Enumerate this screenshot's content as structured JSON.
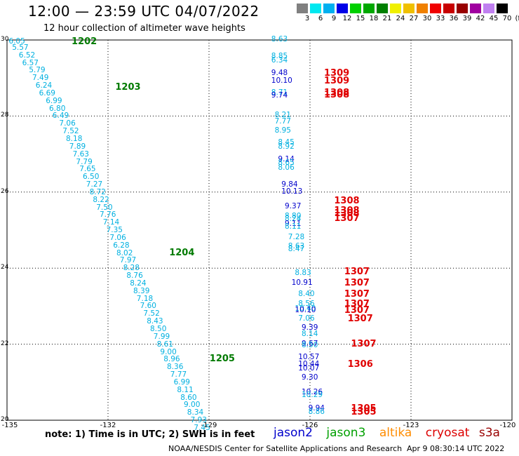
{
  "title": "12:00 — 23:59 UTC 04/07/2022",
  "subtitle": "12 hour collection of altimeter wave heights",
  "colorbar": {
    "labels": [
      "3",
      "6",
      "9",
      "12",
      "15",
      "18",
      "21",
      "24",
      "27",
      "30",
      "33",
      "36",
      "39",
      "42",
      "45",
      "70",
      "(ft)"
    ],
    "colors": [
      "#808080",
      "#00e8f0",
      "#00b0f0",
      "#0000e8",
      "#00d000",
      "#00a800",
      "#008000",
      "#f0f000",
      "#f0c000",
      "#f08000",
      "#f00000",
      "#c80000",
      "#980000",
      "#a000a0",
      "#c080f0",
      "#000000"
    ]
  },
  "axes": {
    "lat_ticks": [
      "30",
      "28",
      "26",
      "24",
      "22",
      "20"
    ],
    "lon_ticks": [
      "-135",
      "-132",
      "-129",
      "-126",
      "-123",
      "-120"
    ],
    "lon_range": [
      -135,
      -120
    ],
    "lat_range": [
      20,
      30
    ]
  },
  "satellites": {
    "jason2": {
      "label": "jason2",
      "color": "#0000cc"
    },
    "jason3": {
      "label": "jason3",
      "color": "#00a000"
    },
    "altika": {
      "label": "altika",
      "color": "#ff8c00"
    },
    "cryosat": {
      "label": "cryosat",
      "color": "#dd0000"
    },
    "s3a": {
      "label": "s3a",
      "color": "#990000"
    }
  },
  "colors": {
    "cyan": "#00b0e0",
    "blue": "#0000cc",
    "green": "#007a00",
    "red": "#e00000"
  },
  "track_times": [
    {
      "lon": -133.0,
      "lat": 29.95,
      "text": "1202"
    },
    {
      "lon": -131.7,
      "lat": 28.75,
      "text": "1203"
    },
    {
      "lon": -130.1,
      "lat": 24.4,
      "text": "1204"
    },
    {
      "lon": -128.9,
      "lat": 21.6,
      "text": "1205"
    },
    {
      "lon": -125.5,
      "lat": 29.12,
      "text": "1309"
    },
    {
      "lon": -125.5,
      "lat": 28.92,
      "text": "1309"
    },
    {
      "lon": -125.5,
      "lat": 28.6,
      "text": "1308"
    },
    {
      "lon": -125.5,
      "lat": 28.55,
      "text": "1308"
    },
    {
      "lon": -125.2,
      "lat": 25.75,
      "text": "1308"
    },
    {
      "lon": -125.2,
      "lat": 25.5,
      "text": "1308"
    },
    {
      "lon": -125.2,
      "lat": 25.43,
      "text": "1308"
    },
    {
      "lon": -125.2,
      "lat": 25.3,
      "text": "1307"
    },
    {
      "lon": -124.9,
      "lat": 23.9,
      "text": "1307"
    },
    {
      "lon": -124.9,
      "lat": 23.6,
      "text": "1307"
    },
    {
      "lon": -124.9,
      "lat": 23.3,
      "text": "1307"
    },
    {
      "lon": -124.9,
      "lat": 23.05,
      "text": "1307"
    },
    {
      "lon": -124.9,
      "lat": 22.88,
      "text": "1307"
    },
    {
      "lon": -124.8,
      "lat": 22.65,
      "text": "1307"
    },
    {
      "lon": -124.7,
      "lat": 22.0,
      "text": "1307"
    },
    {
      "lon": -124.8,
      "lat": 21.45,
      "text": "1306"
    },
    {
      "lon": -124.7,
      "lat": 20.3,
      "text": "1305"
    },
    {
      "lon": -124.7,
      "lat": 20.2,
      "text": "1305"
    }
  ],
  "observations": [
    {
      "lon": -134.7,
      "lat": 29.95,
      "v": "6.05",
      "c": "cyan"
    },
    {
      "lon": -134.6,
      "lat": 29.78,
      "v": "5.57",
      "c": "cyan"
    },
    {
      "lon": -134.4,
      "lat": 29.57,
      "v": "6.52",
      "c": "cyan"
    },
    {
      "lon": -134.3,
      "lat": 29.38,
      "v": "6.57",
      "c": "cyan"
    },
    {
      "lon": -134.1,
      "lat": 29.18,
      "v": "5.79",
      "c": "cyan"
    },
    {
      "lon": -134.0,
      "lat": 28.98,
      "v": "7.49",
      "c": "cyan"
    },
    {
      "lon": -133.9,
      "lat": 28.78,
      "v": "6.24",
      "c": "cyan"
    },
    {
      "lon": -133.8,
      "lat": 28.58,
      "v": "6.69",
      "c": "cyan"
    },
    {
      "lon": -133.6,
      "lat": 28.38,
      "v": "6.99",
      "c": "cyan"
    },
    {
      "lon": -133.5,
      "lat": 28.18,
      "v": "6.80",
      "c": "cyan"
    },
    {
      "lon": -133.4,
      "lat": 27.98,
      "v": "6.49",
      "c": "cyan"
    },
    {
      "lon": -133.2,
      "lat": 27.78,
      "v": "7.06",
      "c": "cyan"
    },
    {
      "lon": -133.1,
      "lat": 27.58,
      "v": "7.52",
      "c": "cyan"
    },
    {
      "lon": -133.0,
      "lat": 27.38,
      "v": "8.18",
      "c": "cyan"
    },
    {
      "lon": -132.9,
      "lat": 27.18,
      "v": "7.89",
      "c": "cyan"
    },
    {
      "lon": -132.8,
      "lat": 26.98,
      "v": "7.63",
      "c": "cyan"
    },
    {
      "lon": -132.7,
      "lat": 26.78,
      "v": "7.79",
      "c": "cyan"
    },
    {
      "lon": -132.6,
      "lat": 26.58,
      "v": "7.65",
      "c": "cyan"
    },
    {
      "lon": -132.5,
      "lat": 26.38,
      "v": "6.50",
      "c": "cyan"
    },
    {
      "lon": -132.4,
      "lat": 26.18,
      "v": "7.27",
      "c": "cyan"
    },
    {
      "lon": -132.3,
      "lat": 25.98,
      "v": "8.72",
      "c": "cyan"
    },
    {
      "lon": -132.2,
      "lat": 25.78,
      "v": "8.22",
      "c": "cyan"
    },
    {
      "lon": -132.1,
      "lat": 25.58,
      "v": "7.50",
      "c": "cyan"
    },
    {
      "lon": -132.0,
      "lat": 25.38,
      "v": "7.76",
      "c": "cyan"
    },
    {
      "lon": -131.9,
      "lat": 25.18,
      "v": "7.14",
      "c": "cyan"
    },
    {
      "lon": -131.8,
      "lat": 24.98,
      "v": "7.35",
      "c": "cyan"
    },
    {
      "lon": -131.7,
      "lat": 24.78,
      "v": "7.06",
      "c": "cyan"
    },
    {
      "lon": -131.6,
      "lat": 24.58,
      "v": "6.28",
      "c": "cyan"
    },
    {
      "lon": -131.5,
      "lat": 24.38,
      "v": "8.02",
      "c": "cyan"
    },
    {
      "lon": -131.4,
      "lat": 24.18,
      "v": "7.97",
      "c": "cyan"
    },
    {
      "lon": -131.3,
      "lat": 23.98,
      "v": "8.28",
      "c": "cyan"
    },
    {
      "lon": -131.2,
      "lat": 23.78,
      "v": "8.76",
      "c": "cyan"
    },
    {
      "lon": -131.1,
      "lat": 23.58,
      "v": "8.24",
      "c": "cyan"
    },
    {
      "lon": -131.0,
      "lat": 23.38,
      "v": "8.39",
      "c": "cyan"
    },
    {
      "lon": -130.9,
      "lat": 23.18,
      "v": "7.18",
      "c": "cyan"
    },
    {
      "lon": -130.8,
      "lat": 22.98,
      "v": "7.60",
      "c": "cyan"
    },
    {
      "lon": -130.7,
      "lat": 22.78,
      "v": "7.52",
      "c": "cyan"
    },
    {
      "lon": -130.6,
      "lat": 22.58,
      "v": "8.43",
      "c": "cyan"
    },
    {
      "lon": -130.5,
      "lat": 22.38,
      "v": "8.50",
      "c": "cyan"
    },
    {
      "lon": -130.4,
      "lat": 22.18,
      "v": "7.99",
      "c": "cyan"
    },
    {
      "lon": -130.3,
      "lat": 21.98,
      "v": "8.61",
      "c": "cyan"
    },
    {
      "lon": -130.2,
      "lat": 21.78,
      "v": "9.00",
      "c": "cyan"
    },
    {
      "lon": -130.1,
      "lat": 21.58,
      "v": "8.96",
      "c": "cyan"
    },
    {
      "lon": -130.0,
      "lat": 21.38,
      "v": "8.36",
      "c": "cyan"
    },
    {
      "lon": -129.9,
      "lat": 21.18,
      "v": "7.77",
      "c": "cyan"
    },
    {
      "lon": -129.8,
      "lat": 20.98,
      "v": "6.99",
      "c": "cyan"
    },
    {
      "lon": -129.7,
      "lat": 20.78,
      "v": "8.11",
      "c": "cyan"
    },
    {
      "lon": -129.6,
      "lat": 20.58,
      "v": "8.60",
      "c": "cyan"
    },
    {
      "lon": -129.5,
      "lat": 20.38,
      "v": "9.00",
      "c": "cyan"
    },
    {
      "lon": -129.4,
      "lat": 20.18,
      "v": "8.34",
      "c": "cyan"
    },
    {
      "lon": -129.3,
      "lat": 19.98,
      "v": "7.93",
      "c": "cyan"
    },
    {
      "lon": -129.2,
      "lat": 19.78,
      "v": "7.45",
      "c": "cyan"
    },
    {
      "lon": -126.9,
      "lat": 30.0,
      "v": "8.63",
      "c": "cyan"
    },
    {
      "lon": -126.9,
      "lat": 29.55,
      "v": "8.85",
      "c": "cyan"
    },
    {
      "lon": -126.9,
      "lat": 29.45,
      "v": "6.34",
      "c": "cyan"
    },
    {
      "lon": -126.9,
      "lat": 29.12,
      "v": "9.48",
      "c": "blue"
    },
    {
      "lon": -126.9,
      "lat": 28.92,
      "v": "10.10",
      "c": "blue"
    },
    {
      "lon": -126.9,
      "lat": 28.6,
      "v": "8.71",
      "c": "cyan"
    },
    {
      "lon": -126.9,
      "lat": 28.52,
      "v": "9.74",
      "c": "blue"
    },
    {
      "lon": -126.8,
      "lat": 28.0,
      "v": "8.21",
      "c": "cyan"
    },
    {
      "lon": -126.8,
      "lat": 27.85,
      "v": "7.77",
      "c": "cyan"
    },
    {
      "lon": -126.8,
      "lat": 27.6,
      "v": "8.95",
      "c": "cyan"
    },
    {
      "lon": -126.7,
      "lat": 27.28,
      "v": "8.45",
      "c": "cyan"
    },
    {
      "lon": -126.7,
      "lat": 27.18,
      "v": "8.92",
      "c": "cyan"
    },
    {
      "lon": -126.7,
      "lat": 26.85,
      "v": "9.14",
      "c": "blue"
    },
    {
      "lon": -126.7,
      "lat": 26.75,
      "v": "8.65",
      "c": "cyan"
    },
    {
      "lon": -126.7,
      "lat": 26.62,
      "v": "8.06",
      "c": "cyan"
    },
    {
      "lon": -126.6,
      "lat": 26.18,
      "v": "9.84",
      "c": "blue"
    },
    {
      "lon": -126.6,
      "lat": 26.0,
      "v": "10.13",
      "c": "blue"
    },
    {
      "lon": -126.5,
      "lat": 25.6,
      "v": "9.37",
      "c": "blue"
    },
    {
      "lon": -126.5,
      "lat": 25.35,
      "v": "8.80",
      "c": "cyan"
    },
    {
      "lon": -126.5,
      "lat": 25.28,
      "v": "8.24",
      "c": "cyan"
    },
    {
      "lon": -126.5,
      "lat": 25.15,
      "v": "9.11",
      "c": "blue"
    },
    {
      "lon": -126.5,
      "lat": 25.08,
      "v": "8.11",
      "c": "cyan"
    },
    {
      "lon": -126.4,
      "lat": 24.8,
      "v": "7.28",
      "c": "cyan"
    },
    {
      "lon": -126.4,
      "lat": 24.55,
      "v": "8.63",
      "c": "cyan"
    },
    {
      "lon": -126.4,
      "lat": 24.48,
      "v": "8.47",
      "c": "cyan"
    },
    {
      "lon": -126.2,
      "lat": 23.85,
      "v": "8.83",
      "c": "cyan"
    },
    {
      "lon": -126.3,
      "lat": 23.6,
      "v": "10.91",
      "c": "blue"
    },
    {
      "lon": -126.1,
      "lat": 23.3,
      "v": "8.40",
      "c": "cyan"
    },
    {
      "lon": -126.1,
      "lat": 23.05,
      "v": "8.56",
      "c": "cyan"
    },
    {
      "lon": -126.2,
      "lat": 22.92,
      "v": "10.40",
      "c": "cyan"
    },
    {
      "lon": -126.2,
      "lat": 22.88,
      "v": "10.10",
      "c": "blue"
    },
    {
      "lon": -126.1,
      "lat": 22.65,
      "v": "7.06",
      "c": "cyan"
    },
    {
      "lon": -126.0,
      "lat": 22.42,
      "v": "9.39",
      "c": "blue"
    },
    {
      "lon": -126.0,
      "lat": 22.25,
      "v": "8.14",
      "c": "cyan"
    },
    {
      "lon": -126.0,
      "lat": 22.0,
      "v": "9.67",
      "c": "blue"
    },
    {
      "lon": -126.0,
      "lat": 21.95,
      "v": "8.50",
      "c": "cyan"
    },
    {
      "lon": -126.1,
      "lat": 21.65,
      "v": "10.57",
      "c": "blue"
    },
    {
      "lon": -126.1,
      "lat": 21.45,
      "v": "10.44",
      "c": "blue"
    },
    {
      "lon": -126.1,
      "lat": 21.35,
      "v": "10.07",
      "c": "blue"
    },
    {
      "lon": -126.0,
      "lat": 21.1,
      "v": "9.30",
      "c": "blue"
    },
    {
      "lon": -126.0,
      "lat": 20.72,
      "v": "10.26",
      "c": "blue"
    },
    {
      "lon": -126.0,
      "lat": 20.65,
      "v": "10.29",
      "c": "cyan"
    },
    {
      "lon": -125.8,
      "lat": 20.3,
      "v": "9.94",
      "c": "blue"
    },
    {
      "lon": -125.8,
      "lat": 20.2,
      "v": "8.86",
      "c": "cyan"
    }
  ],
  "note": "note:  1) Time is in UTC;  2) SWH is in feet",
  "credit": "NOAA/NESDIS Center for Satellite Applications and Research",
  "stamp": "Apr  9 08:30:14 UTC 2022"
}
